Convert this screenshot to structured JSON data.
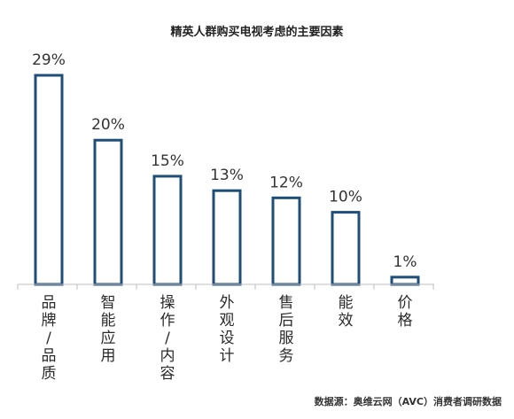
{
  "chart_data": {
    "type": "bar",
    "title": "精英人群购买电视考虑的主要因素",
    "categories": [
      "品牌/品质",
      "智能应用",
      "操作/内容",
      "外观设计",
      "售后服务",
      "能效",
      "价格"
    ],
    "values": [
      29,
      20,
      15,
      13,
      12,
      10,
      1
    ],
    "value_labels": [
      "29%",
      "20%",
      "15%",
      "13%",
      "12%",
      "10%",
      "1%"
    ],
    "ylim": [
      0,
      30
    ],
    "grid": false,
    "legend": "none",
    "bar_style": "outline",
    "bar_color": "#1f4e79",
    "axis_color": "#bfbfbf",
    "source": "数据源：奥维云网（AVC）消费者调研数据"
  }
}
